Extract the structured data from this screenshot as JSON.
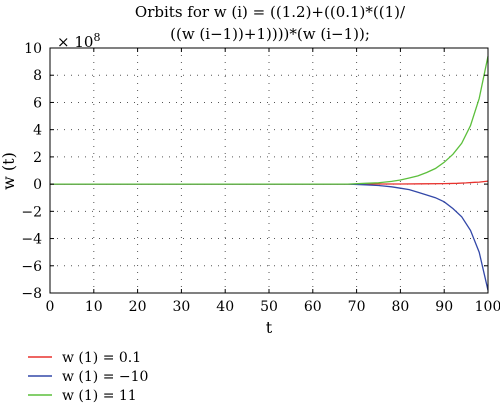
{
  "chart_data": {
    "type": "line",
    "title_lines": [
      "Orbits for w (i) = ((1.2)+((0.1)*((1)/",
      "((w (i−1))+1))))*(w (i−1));"
    ],
    "xlabel": "t",
    "ylabel": "w (t)",
    "y_scale_factor": "× 10",
    "y_scale_exponent": "8",
    "xlim": [
      0,
      100
    ],
    "ylim": [
      -8,
      10
    ],
    "x_ticks": [
      0,
      10,
      20,
      30,
      40,
      50,
      60,
      70,
      80,
      90,
      100
    ],
    "y_ticks": [
      -8,
      -6,
      -4,
      -2,
      0,
      2,
      4,
      6,
      8,
      10
    ],
    "grid": true,
    "legend_position": "bottom-left",
    "series": [
      {
        "name": "w (1) = 0.1",
        "color": "#e8322e",
        "points": [
          [
            0,
            0
          ],
          [
            70,
            0
          ],
          [
            75,
            0.005
          ],
          [
            80,
            0.01
          ],
          [
            85,
            0.02
          ],
          [
            90,
            0.04
          ],
          [
            93,
            0.06
          ],
          [
            95,
            0.09
          ],
          [
            97,
            0.13
          ],
          [
            98,
            0.15
          ],
          [
            100,
            0.22
          ]
        ]
      },
      {
        "name": "w (1) = −10",
        "color": "#3348a8",
        "points": [
          [
            0,
            0
          ],
          [
            68,
            0
          ],
          [
            72,
            -0.05
          ],
          [
            75,
            -0.1
          ],
          [
            78,
            -0.2
          ],
          [
            80,
            -0.3
          ],
          [
            82,
            -0.4
          ],
          [
            84,
            -0.6
          ],
          [
            86,
            -0.8
          ],
          [
            88,
            -1.0
          ],
          [
            90,
            -1.3
          ],
          [
            92,
            -1.8
          ],
          [
            94,
            -2.4
          ],
          [
            96,
            -3.4
          ],
          [
            98,
            -5.0
          ],
          [
            100,
            -7.8
          ]
        ]
      },
      {
        "name": "w (1) = 11",
        "color": "#5cbf3c",
        "points": [
          [
            0,
            0
          ],
          [
            68,
            0
          ],
          [
            72,
            0.06
          ],
          [
            75,
            0.1
          ],
          [
            78,
            0.2
          ],
          [
            80,
            0.3
          ],
          [
            82,
            0.45
          ],
          [
            84,
            0.6
          ],
          [
            86,
            0.85
          ],
          [
            88,
            1.15
          ],
          [
            90,
            1.6
          ],
          [
            92,
            2.2
          ],
          [
            94,
            3.0
          ],
          [
            96,
            4.3
          ],
          [
            98,
            6.3
          ],
          [
            100,
            9.4
          ]
        ]
      }
    ]
  }
}
